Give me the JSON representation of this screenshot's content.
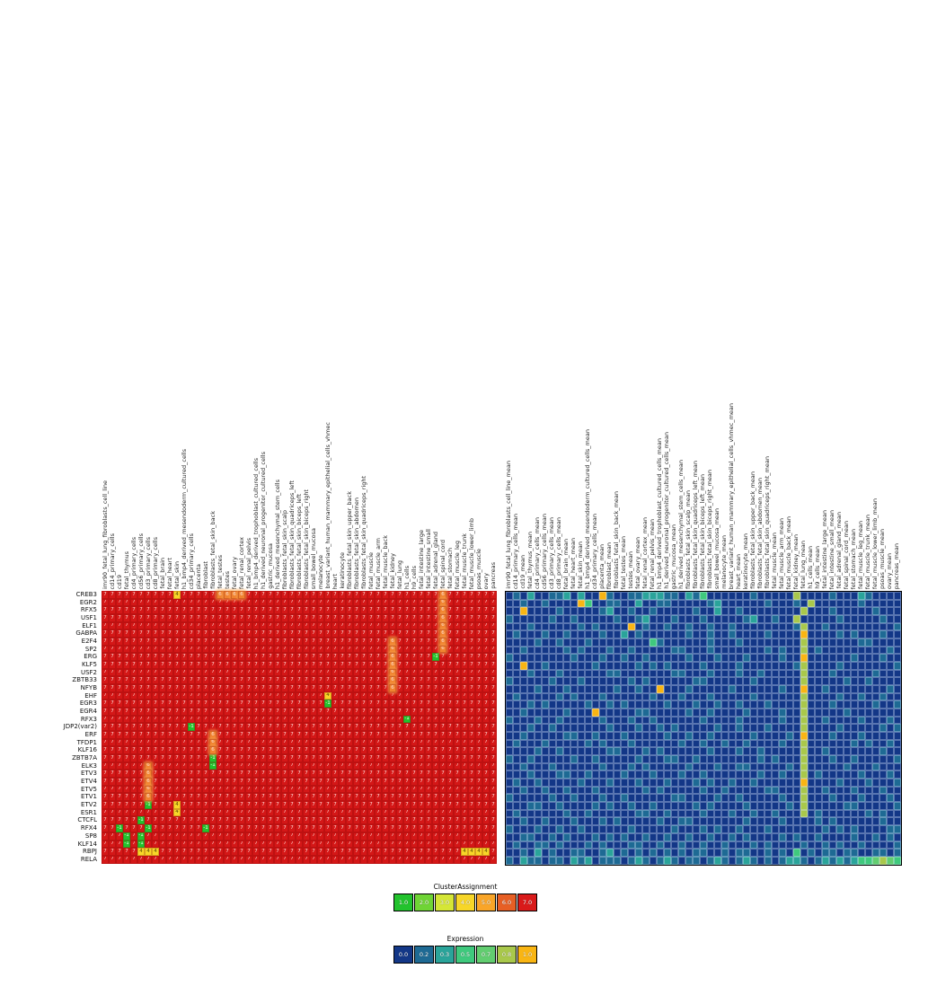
{
  "chart_data": {
    "type": "heatmap",
    "panels": [
      {
        "name": "cluster_assignment",
        "title": "ClusterAssignment",
        "default_value": 7
      },
      {
        "name": "expression",
        "title": "Expression"
      }
    ],
    "row_labels": [
      "CREB3",
      "EGR2",
      "RFX5",
      "USF1",
      "ELF1",
      "GABPA",
      "E2F4",
      "SP2",
      "ERG",
      "KLF5",
      "USF2",
      "ZBTB33",
      "NFYB",
      "EHF",
      "EGR3",
      "EGR4",
      "RFX3",
      "JDP2(var2)",
      "ERF",
      "TFDP1",
      "KLF16",
      "ZBTB7A",
      "ELK3",
      "ETV3",
      "ETV4",
      "ETV5",
      "ETV1",
      "ETV2",
      "ESR1",
      "CTCFL",
      "RFX4",
      "SP8",
      "KLF14",
      "RBPJ",
      "RELA"
    ],
    "left_col_labels": [
      "imr90_fetal_lung_fibroblasts_cell_line",
      "cd14_primary_cells",
      "cd19",
      "fetal_thymus",
      "cd4_primary_cells",
      "cd56_primary_cells",
      "cd3_primary_cells",
      "cd8_primary_cells",
      "fetal_brain",
      "fetal_heart",
      "fetal_skin",
      "h1_bmp4_derived_mesendoderm_cultured_cells",
      "cd34_primary_cells",
      "placenta",
      "fibroblast",
      "fibroblasts_fetal_skin_back",
      "fetal_testes",
      "testes",
      "fetal_ovary",
      "fetal_renal_cortex",
      "fetal_renal_pelvis",
      "h1_bmp4_derived_trophoblast_cultured_cells",
      "h1_derived_neuronal_progenitor_cultured_cells",
      "gastric_mucosa",
      "h1_derived_mesenchymal_stem_cells",
      "fibroblasts_fetal_skin_scalp",
      "fibroblasts_fetal_skin_quadriceps_left",
      "fibroblasts_fetal_skin_biceps_left",
      "fibroblasts_fetal_skin_biceps_right",
      "small_bowel_mucosa",
      "melanocyte",
      "breast_variant_human_mammary_epithelial_cells_vhmec",
      "heart",
      "keratinocyte",
      "fibroblasts_fetal_skin_upper_back",
      "fibroblasts_fetal_skin_abdomen",
      "fibroblasts_fetal_skin_quadriceps_right",
      "fetal_muscle",
      "fetal_muscle_arm",
      "fetal_muscle_back",
      "fetal_kidney",
      "fetal_lung",
      "h1_cells",
      "h9_cells",
      "fetal_intestine_large",
      "fetal_intestine_small",
      "fetal_adrenal_gland",
      "fetal_spinal_cord",
      "fetal_stomach",
      "fetal_muscle_leg",
      "fetal_muscle_trunk",
      "fetal_muscle_lower_limb",
      "psoas_muscle",
      "ovary",
      "pancreas"
    ],
    "right_col_labels": [
      "imr90_fetal_lung_fibroblasts_cell_line_mean",
      "cd14_primary_cells_mean",
      "cd19_mean",
      "fetal_thymus_mean",
      "cd4_primary_cells_mean",
      "cd56_primary_cells_mean",
      "cd3_primary_cells_mean",
      "cd8_primary_cells_mean",
      "fetal_brain_mean",
      "fetal_heart_mean",
      "fetal_skin_mean",
      "h1_bmp4_derived_mesendoderm_cultured_cells_mean",
      "cd34_primary_cells_mean",
      "placenta_mean",
      "fibroblast_mean",
      "fibroblasts_fetal_skin_back_mean",
      "fetal_testes_mean",
      "testes_mean",
      "fetal_ovary_mean",
      "fetal_renal_cortex_mean",
      "fetal_renal_pelvis_mean",
      "h1_bmp4_derived_trophoblast_cultured_cells_mean",
      "h1_derived_neuronal_progenitor_cultured_cells_mean",
      "gastric_mucosa_mean",
      "h1_derived_mesenchymal_stem_cells_mean",
      "fibroblasts_fetal_skin_scalp_mean",
      "fibroblasts_fetal_skin_quadriceps_left_mean",
      "fibroblasts_fetal_skin_biceps_left_mean",
      "fibroblasts_fetal_skin_biceps_right_mean",
      "small_bowel_mucosa_mean",
      "melanocyte_mean",
      "breast_variant_human_mammary_epithelial_cells_vhmec_mean",
      "heart_mean",
      "keratinocyte_mean",
      "fibroblasts_fetal_skin_upper_back_mean",
      "fibroblasts_fetal_skin_abdomen_mean",
      "fibroblasts_fetal_skin_quadriceps_right_mean",
      "fetal_muscle_mean",
      "fetal_muscle_arm_mean",
      "fetal_muscle_back_mean",
      "fetal_kidney_mean",
      "fetal_lung_mean",
      "h1_cells_mean",
      "h9_cells_mean",
      "fetal_intestine_large_mean",
      "fetal_intestine_small_mean",
      "fetal_adrenal_gland_mean",
      "fetal_spinal_cord_mean",
      "fetal_stomach_mean",
      "fetal_muscle_leg_mean",
      "fetal_muscle_trunk_mean",
      "fetal_muscle_lower_limb_mean",
      "psoas_muscle_mean",
      "ovary_mean",
      "pancreas_mean"
    ],
    "cluster_special_cells": {
      "CREB3": [
        [
          10,
          4
        ],
        [
          16,
          6
        ],
        [
          17,
          6
        ],
        [
          18,
          6
        ],
        [
          19,
          6
        ],
        [
          47,
          6
        ]
      ],
      "EGR2": [
        [
          47,
          6
        ]
      ],
      "RFX5": [
        [
          47,
          6
        ]
      ],
      "USF1": [
        [
          47,
          6
        ]
      ],
      "ELF1": [
        [
          47,
          6
        ]
      ],
      "GABPA": [
        [
          47,
          6
        ]
      ],
      "E2F4": [
        [
          40,
          6
        ],
        [
          47,
          6
        ]
      ],
      "SP2": [
        [
          40,
          6
        ],
        [
          47,
          6
        ]
      ],
      "ERG": [
        [
          40,
          6
        ],
        [
          46,
          -1
        ]
      ],
      "KLF5": [
        [
          40,
          6
        ]
      ],
      "USF2": [
        [
          40,
          6
        ]
      ],
      "ZBTB33": [
        [
          40,
          6
        ]
      ],
      "NFYB": [
        [
          40,
          6
        ]
      ],
      "EHF": [
        [
          31,
          4
        ]
      ],
      "EGR3": [
        [
          31,
          -1
        ]
      ],
      "RFX3": [
        [
          42,
          -1
        ]
      ],
      "JDP2(var2)": [
        [
          12,
          -1
        ]
      ],
      "ERF": [
        [
          15,
          6
        ]
      ],
      "TFDP1": [
        [
          15,
          6
        ]
      ],
      "KLF16": [
        [
          15,
          6
        ]
      ],
      "ZBTB7A": [
        [
          15,
          -1
        ]
      ],
      "ELK3": [
        [
          6,
          6
        ],
        [
          15,
          -1
        ]
      ],
      "ETV3": [
        [
          6,
          6
        ]
      ],
      "ETV4": [
        [
          6,
          6
        ]
      ],
      "ETV5": [
        [
          6,
          6
        ]
      ],
      "ETV1": [
        [
          6,
          6
        ]
      ],
      "ETV2": [
        [
          6,
          -1
        ],
        [
          10,
          4
        ]
      ],
      "ESR1": [
        [
          10,
          4
        ]
      ],
      "CTCFL": [
        [
          5,
          -1
        ]
      ],
      "RFX4": [
        [
          2,
          -1
        ],
        [
          6,
          -1
        ],
        [
          14,
          -1
        ]
      ],
      "SP8": [
        [
          3,
          -1
        ],
        [
          5,
          -1
        ]
      ],
      "KLF14": [
        [
          3,
          -1
        ],
        [
          5,
          -1
        ]
      ],
      "RBPJ": [
        [
          5,
          4
        ],
        [
          6,
          4
        ],
        [
          7,
          4
        ],
        [
          50,
          4
        ],
        [
          51,
          4
        ],
        [
          52,
          4
        ],
        [
          53,
          4
        ]
      ]
    },
    "cluster_value_colors": {
      "-1": "#22c32d",
      "4": "#f7d628",
      "6": "#f08330",
      "7": "#d41717"
    },
    "expression_levels": [
      "0.0",
      "0.2",
      "0.3",
      "0.5",
      "0.7",
      "0.8",
      "1.0"
    ],
    "expression_palette": [
      "#133787",
      "#1e6a94",
      "#2aa49a",
      "#3fc97d",
      "#62cd70",
      "#a9c84b",
      "#f9b513"
    ],
    "expression_grid": [
      "0102001120200610011222110213000000100000500001000210000",
      "0010010000630011002001100000120000001000105000000100000",
      "0060000100000120010010000010020010000000050001000001000",
      "1000001001000001001200010001000001200100500000100000100",
      "0001000000101000060100100100100100000000150010000000001",
      "0100010010000100201000000100100100001000060000101000100",
      "0000100100010000000031000000100010000000050000000110000",
      "0010000010100010010000011000100000001010050100000000010",
      "1000000001000100100100000100010001000010060000001000100",
      "0060010000001000001010100001000010000000150000100000001",
      "0001000100000011000000011000100010010000050001000001000",
      "1000001000100000010100000011000000100000050000010010000",
      "0000100010000001001006000100000100000010060010000000010",
      "0100000101000100000010001000100000100000050000100100100",
      "0001010000010010100000100010010010001000050001000001001",
      "0010000010006000001100000100100001000010050000010000000",
      "1000100100000100010010000001000010000010050010000100010",
      "0001001000000010001001010000010010001000050000100000101",
      "0010000011001000100000100100100000100001060001000100000",
      "0100010000010100010000001001001001000010050000001010010",
      "0000100100000011000101000000100010010000050010000000100",
      "1001000001001000001000110010000000010100050001001000001",
      "0010001000000100010100000100010011000001050000010001000",
      "0001000110010000100010001001000000010010050100000100010",
      "0100100000100010001000100010100100100000060000100010001",
      "0010010010001000000101000001001000001100050010001000100",
      "1000001001000100100000011000010010000010050001000100010",
      "0001100100001010010010000010100001000001050000011000001",
      "0100000010010000001100100001000100100100050100000010100",
      "0010010001000101000001001100000001000010000101000000100",
      "1000100100100000010000010001010010001000000010101000011",
      "0011001010001010100100100100100101000010100100001001010",
      "0100110100010100011001001001001000101000010010100100001",
      "0010201001100120101010101011001011001010301011011001101",
      "1021101102120111012101210110121012101012210121212334543"
    ],
    "legends": [
      {
        "title": "ClusterAssignment",
        "entries": [
          {
            "label": "1.0",
            "color": "#22c32d"
          },
          {
            "label": "2.0",
            "color": "#6fd435"
          },
          {
            "label": "3.0",
            "color": "#d5e636"
          },
          {
            "label": "4.0",
            "color": "#f7d628"
          },
          {
            "label": "5.0",
            "color": "#f9a528"
          },
          {
            "label": "6.0",
            "color": "#e75f24"
          },
          {
            "label": "7.0",
            "color": "#d91a1a"
          }
        ]
      },
      {
        "title": "Expression",
        "entries": [
          {
            "label": "0.0",
            "color": "#133787"
          },
          {
            "label": "0.2",
            "color": "#1e6a94"
          },
          {
            "label": "0.3",
            "color": "#2aa49a"
          },
          {
            "label": "0.5",
            "color": "#3fc97d"
          },
          {
            "label": "0.7",
            "color": "#62cd70"
          },
          {
            "label": "0.8",
            "color": "#a9c84b"
          },
          {
            "label": "1.0",
            "color": "#f9b513"
          }
        ]
      }
    ]
  }
}
